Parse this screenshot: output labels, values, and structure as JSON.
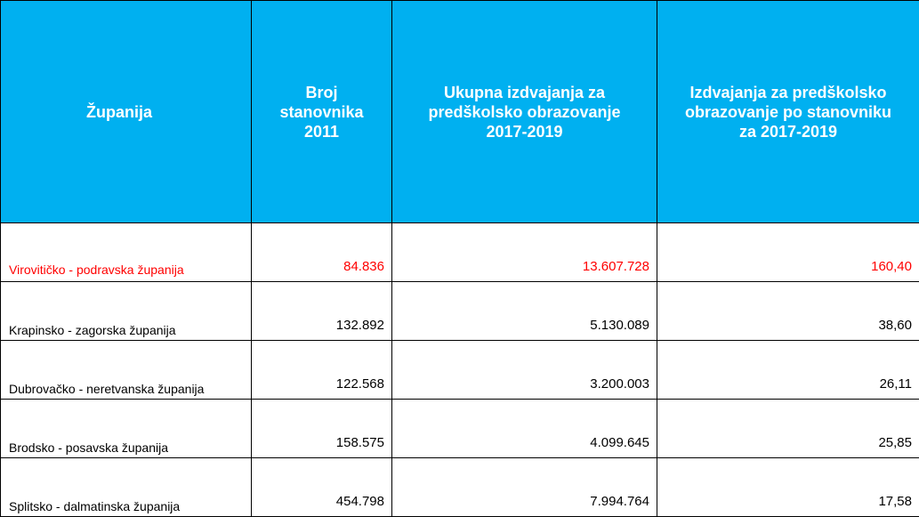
{
  "header": {
    "col1": "Županija",
    "col2_line1": "Broj",
    "col2_line2": "stanovnika",
    "col2_line3": "2011",
    "col3_line1": "Ukupna izdvajanja za",
    "col3_line2": "predškolsko obrazovanje",
    "col3_line3": "2017-2019",
    "col4_line1": "Izdvajanja za predškolsko",
    "col4_line2": "obrazovanje po stanovniku",
    "col4_line3": "za 2017-2019"
  },
  "rows": [
    {
      "county": "Virovitičko - podravska županija",
      "population": "84.836",
      "total": "13.607.728",
      "per_capita": "160,40",
      "highlight": true
    },
    {
      "county": "Krapinsko - zagorska županija",
      "population": "132.892",
      "total": "5.130.089",
      "per_capita": "38,60"
    },
    {
      "county": "Dubrovačko - neretvanska županija",
      "population": "122.568",
      "total": "3.200.003",
      "per_capita": "26,11"
    },
    {
      "county": "Brodsko - posavska županija",
      "population": "158.575",
      "total": "4.099.645",
      "per_capita": "25,85"
    },
    {
      "county": "Splitsko - dalmatinska županija",
      "population": "454.798",
      "total": "7.994.764",
      "per_capita": "17,58"
    }
  ],
  "colors": {
    "header_bg": "#00b0f0",
    "header_text": "#ffffff",
    "highlight_text": "#ff0000",
    "border": "#000000"
  }
}
